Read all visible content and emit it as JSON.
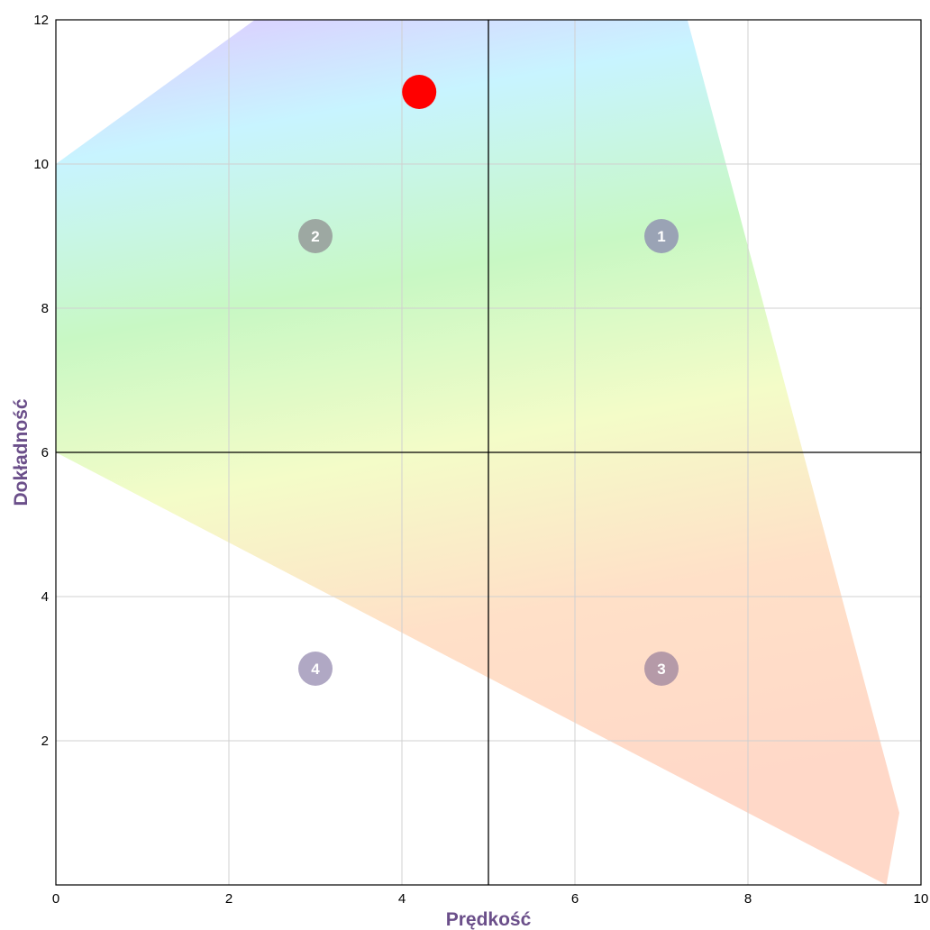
{
  "chart_data": {
    "type": "scatter",
    "xlabel": "Prędkość",
    "ylabel": "Dokładność",
    "xlim": [
      0,
      10
    ],
    "ylim": [
      0,
      12
    ],
    "x_ticks": [
      "0",
      "2",
      "4",
      "6",
      "8",
      "10"
    ],
    "y_ticks": [
      "2",
      "4",
      "6",
      "8",
      "10",
      "12"
    ],
    "grid": true,
    "quadrant_dividers": {
      "x": 5,
      "y": 6
    },
    "shaded_region": [
      {
        "x": 0,
        "y": 10
      },
      {
        "x": 2.3,
        "y": 12
      },
      {
        "x": 7.3,
        "y": 12
      },
      {
        "x": 9.75,
        "y": 1
      },
      {
        "x": 9.6,
        "y": 0
      },
      {
        "x": 0,
        "y": 6
      }
    ],
    "quadrants": [
      {
        "label": "1",
        "x": 7,
        "y": 9,
        "color": "#9aa3b5"
      },
      {
        "label": "2",
        "x": 3,
        "y": 9,
        "color": "#9da8a2"
      },
      {
        "label": "3",
        "x": 7,
        "y": 3,
        "color": "#b59aa8"
      },
      {
        "label": "4",
        "x": 3,
        "y": 3,
        "color": "#b0a8c4"
      }
    ],
    "points": [
      {
        "x": 4.2,
        "y": 11,
        "color": "#ff0000"
      }
    ]
  }
}
